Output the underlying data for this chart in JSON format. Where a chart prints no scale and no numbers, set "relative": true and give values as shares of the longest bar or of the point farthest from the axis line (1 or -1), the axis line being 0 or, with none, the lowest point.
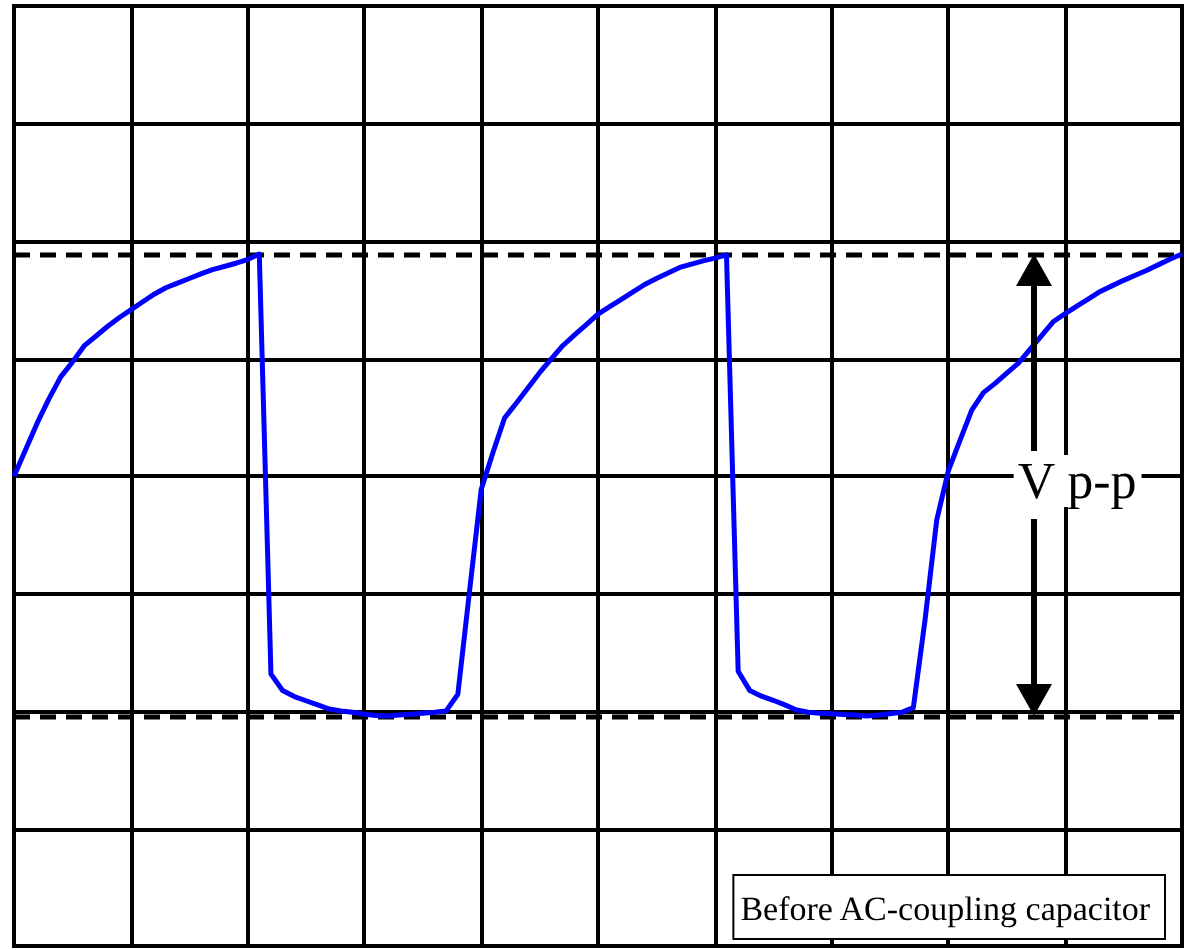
{
  "chart_data": {
    "type": "line",
    "relative": true,
    "categories": [
      null,
      null,
      null,
      null,
      null,
      null,
      null,
      null,
      null,
      null,
      null,
      null,
      null,
      null,
      null,
      null,
      null,
      null,
      null,
      null,
      null,
      null,
      null,
      null,
      null,
      null,
      null,
      null,
      null,
      null,
      null,
      null,
      null,
      null,
      null,
      null,
      null,
      null,
      null,
      null,
      null,
      null,
      null,
      null,
      null,
      null,
      null,
      null,
      null,
      null,
      null,
      null,
      null,
      null,
      null,
      null,
      null,
      null,
      null,
      null,
      null,
      null,
      null,
      null,
      null,
      null,
      null,
      null,
      null,
      null,
      null,
      null,
      null,
      null,
      null,
      null,
      null,
      null,
      null,
      null,
      null,
      null,
      null,
      null,
      null,
      null,
      null,
      null,
      null,
      null,
      null,
      null,
      null,
      null,
      null,
      null,
      null,
      null,
      null,
      null,
      null
    ],
    "series": [
      {
        "color": "#0000ff",
        "values": [
          0.519,
          0.577,
          0.635,
          0.687,
          0.734,
          0.766,
          0.801,
          0.822,
          0.843,
          0.862,
          0.879,
          0.896,
          0.913,
          0.927,
          0.937,
          0.947,
          0.957,
          0.966,
          0.973,
          0.98,
          0.988,
          1,
          0.091,
          0.055,
          0.042,
          0.033,
          0.024,
          0.015,
          0.011,
          0.008,
          0.004,
          0.001,
          0,
          0.002,
          0.004,
          0.006,
          0.008,
          0.011,
          0.047,
          0.27,
          0.49,
          0.57,
          0.645,
          0.677,
          0.71,
          0.743,
          0.773,
          0.802,
          0.825,
          0.847,
          0.87,
          0.886,
          0.902,
          0.918,
          0.934,
          0.947,
          0.959,
          0.971,
          0.978,
          0.985,
          0.991,
          0.998,
          0.097,
          0.055,
          0.043,
          0.034,
          0.024,
          0.013,
          0.008,
          0.006,
          0.005,
          0.003,
          0.002,
          0,
          0.002,
          0.005,
          0.008,
          0.018,
          0.208,
          0.424,
          0.531,
          0.597,
          0.662,
          0.7,
          0.72,
          0.742,
          0.764,
          0.794,
          0.824,
          0.854,
          0.871,
          0.887,
          0.903,
          0.919,
          0.931,
          0.943,
          0.954,
          0.965,
          0.977,
          0.989,
          1
        ]
      }
    ],
    "tick_labels": false,
    "grid": true,
    "ref_lines": [
      {
        "axis": "y",
        "value": 1,
        "color": "#000000",
        "line_style": "dashed"
      },
      {
        "axis": "y",
        "value": 0,
        "color": "#000000",
        "line_style": "dashed"
      }
    ],
    "annotations": [
      "V p-p",
      "Before AC-coupling capacitor"
    ]
  }
}
